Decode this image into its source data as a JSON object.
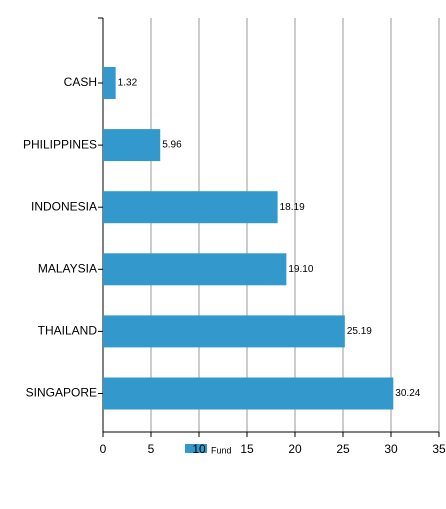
{
  "chart_data": {
    "type": "hbar",
    "categories": [
      "CASH",
      "PHILIPPINES",
      "INDONESIA",
      "MALAYSIA",
      "THAILAND",
      "SINGAPORE"
    ],
    "series": [
      {
        "name": "Fund",
        "color": "#3399cc",
        "values": [
          1.32,
          5.96,
          18.19,
          19.1,
          25.19,
          30.24
        ],
        "value_labels": [
          "1.32",
          "5.96",
          "18.19",
          "19.10",
          "25.19",
          "30.24"
        ]
      }
    ],
    "xlim": [
      0,
      35
    ],
    "xticks": [
      0,
      5,
      10,
      15,
      20,
      25,
      30,
      35
    ],
    "grid": true
  }
}
